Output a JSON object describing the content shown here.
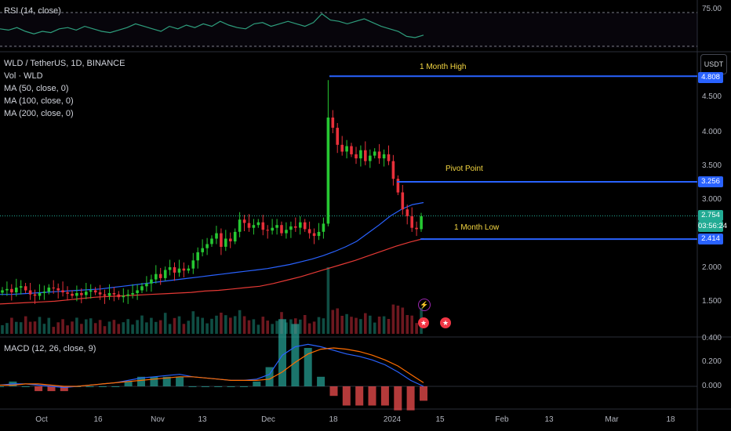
{
  "header": {
    "symbol_line": "WLD / TetherUS, 1D, BINANCE",
    "currency": "USDT"
  },
  "indicators": {
    "rsi_label": "RSI (14, close)",
    "vol_label": "Vol · WLD",
    "ma50_label": "MA (50, close, 0)",
    "ma100_label": "MA (100, close, 0)",
    "ma200_label": "MA (200, close, 0)",
    "macd_label": "MACD (12, 26, close, 9)"
  },
  "annotations": {
    "high_label": "1 Month High",
    "pivot_label": "Pivot Point",
    "low_label": "1 Month Low"
  },
  "price_tags": {
    "high": "4.808",
    "pivot": "3.256",
    "last": "2.754",
    "countdown": "03:56:24",
    "low": "2.414"
  },
  "axes": {
    "rsi_tick": "75.00",
    "price_ticks": [
      "4.500",
      "4.000",
      "3.500",
      "3.000",
      "2.000",
      "1.500"
    ],
    "macd_ticks": [
      "0.400",
      "0.200",
      "0.000"
    ],
    "x_ticks": [
      "Oct",
      "16",
      "Nov",
      "13",
      "Dec",
      "18",
      "2024",
      "15",
      "Feb",
      "13",
      "Mar",
      "18"
    ]
  },
  "colors": {
    "up": "#22ab94",
    "down": "#f23645",
    "candle_up": "#26c832",
    "candle_down": "#e8303a",
    "ma50": "#2962ff",
    "ma100": "#e53935",
    "level": "#2962ff",
    "annotation": "#f5d742",
    "rsi": "#2e9e7d",
    "macd": "#2962ff",
    "signal": "#ff6d00"
  },
  "chart_data": {
    "type": "candlestick",
    "symbol": "WLD / TetherUS",
    "interval": "1D",
    "exchange": "BINANCE",
    "levels": [
      {
        "name": "1 Month High",
        "value": 4.808
      },
      {
        "name": "Pivot Point",
        "value": 3.256
      },
      {
        "name": "1 Month Low",
        "value": 2.414
      }
    ],
    "last_price": 2.754,
    "close": [
      1.66,
      1.68,
      1.63,
      1.7,
      1.72,
      1.66,
      1.6,
      1.58,
      1.62,
      1.64,
      1.7,
      1.69,
      1.66,
      1.63,
      1.61,
      1.58,
      1.62,
      1.59,
      1.64,
      1.66,
      1.63,
      1.6,
      1.58,
      1.62,
      1.6,
      1.56,
      1.58,
      1.6,
      1.62,
      1.66,
      1.72,
      1.76,
      1.82,
      1.9,
      1.84,
      1.96,
      2.0,
      1.92,
      1.98,
      1.95,
      1.98,
      2.1,
      2.22,
      2.28,
      2.34,
      2.42,
      2.5,
      2.3,
      2.42,
      2.38,
      2.52,
      2.7,
      2.65,
      2.58,
      2.62,
      2.66,
      2.55,
      2.54,
      2.58,
      2.62,
      2.5,
      2.55,
      2.6,
      2.58,
      2.66,
      2.56,
      2.5,
      2.46,
      2.52,
      2.64,
      4.2,
      4.05,
      3.8,
      3.7,
      3.78,
      3.66,
      3.6,
      3.72,
      3.56,
      3.64,
      3.7,
      3.6,
      3.66,
      3.56,
      3.3,
      3.1,
      2.85,
      2.75,
      2.58,
      2.56,
      2.75
    ],
    "ma50": [
      1.6,
      1.6,
      1.61,
      1.62,
      1.63,
      1.64,
      1.65,
      1.66,
      1.67,
      1.68,
      1.7,
      1.72,
      1.74,
      1.76,
      1.78,
      1.8,
      1.82,
      1.84,
      1.86,
      1.88,
      1.9,
      1.92,
      1.94,
      1.96,
      1.98,
      2.01,
      2.04,
      2.08,
      2.12,
      2.17,
      2.23,
      2.3,
      2.38,
      2.5,
      2.62,
      2.75,
      2.85,
      2.92,
      2.95
    ],
    "ma100": [
      1.46,
      1.47,
      1.48,
      1.49,
      1.5,
      1.52,
      1.54,
      1.56,
      1.57,
      1.58,
      1.59,
      1.6,
      1.61,
      1.62,
      1.63,
      1.65,
      1.66,
      1.68,
      1.7,
      1.72,
      1.76,
      1.81,
      1.86,
      1.92,
      1.98,
      2.04,
      2.1,
      2.17,
      2.24,
      2.31,
      2.37,
      2.42
    ],
    "rsi": [
      62,
      61,
      63,
      60,
      58,
      60,
      59,
      62,
      63,
      61,
      64,
      62,
      60,
      59,
      61,
      63,
      66,
      64,
      62,
      60,
      64,
      62,
      65,
      63,
      66,
      64,
      68,
      65,
      63,
      62,
      66,
      67,
      64,
      66,
      68,
      66,
      64,
      67,
      74,
      69,
      68,
      66,
      68,
      70,
      67,
      64,
      62,
      60,
      56,
      55,
      57
    ],
    "macd": [
      0.01,
      0.02,
      0.02,
      0.01,
      0.0,
      -0.01,
      0.0,
      0.01,
      0.02,
      0.03,
      0.05,
      0.07,
      0.08,
      0.09,
      0.1,
      0.08,
      0.07,
      0.06,
      0.05,
      0.05,
      0.06,
      0.1,
      0.26,
      0.33,
      0.35,
      0.33,
      0.3,
      0.27,
      0.25,
      0.22,
      0.18,
      0.12,
      0.05,
      0.0
    ],
    "signal": [
      0.01,
      0.01,
      0.02,
      0.02,
      0.01,
      0.0,
      0.0,
      0.01,
      0.02,
      0.03,
      0.04,
      0.05,
      0.06,
      0.07,
      0.08,
      0.08,
      0.07,
      0.06,
      0.05,
      0.05,
      0.05,
      0.06,
      0.12,
      0.2,
      0.27,
      0.31,
      0.32,
      0.31,
      0.29,
      0.26,
      0.22,
      0.17,
      0.1,
      0.03
    ],
    "price_ticks": [
      4.5,
      4.0,
      3.5,
      3.0,
      2.0,
      1.5
    ],
    "macd_ticks": [
      0.4,
      0.2,
      0.0
    ],
    "rsi_ticks": [
      75
    ]
  }
}
